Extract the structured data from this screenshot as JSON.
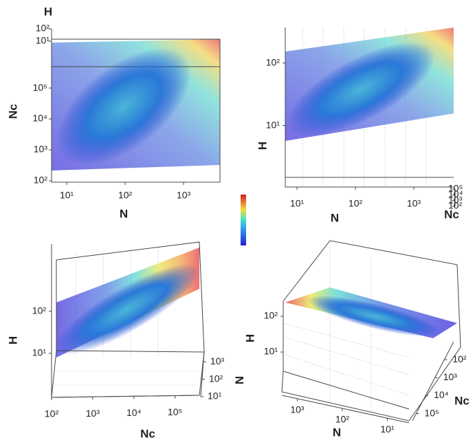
{
  "chart_data": [
    {
      "type": "scatter3d",
      "log": true,
      "axes": [
        {
          "title": "N",
          "lim": [
            5.5,
            4200
          ],
          "ticks": [
            {
              "value": 10,
              "label": "10¹"
            },
            {
              "value": 100,
              "label": "10²"
            },
            {
              "value": 1000,
              "label": "10³"
            }
          ]
        },
        {
          "title": "Nc",
          "lim": [
            100,
            3800000
          ],
          "ticks": [
            {
              "value": 100,
              "label": "10²"
            },
            {
              "value": 1000,
              "label": "10³"
            },
            {
              "value": 10000,
              "label": "10⁴"
            },
            {
              "value": 100000,
              "label": "10⁵"
            }
          ]
        },
        {
          "title": "H",
          "lim": [
            10,
            100
          ],
          "ticks": [
            {
              "value": 10,
              "label": "10¹"
            },
            {
              "value": 100,
              "label": "10²"
            }
          ]
        }
      ]
    },
    {
      "type": "scatter3d",
      "log": true,
      "axes": [
        {
          "title": "N",
          "lim": [
            6.3,
            4200
          ],
          "ticks": [
            {
              "value": 10,
              "label": "10¹"
            },
            {
              "value": 100,
              "label": "10²"
            },
            {
              "value": 1000,
              "label": "10³"
            }
          ]
        },
        {
          "title": "H",
          "lim": [
            1.6,
            370
          ],
          "ticks": [
            {
              "value": 10,
              "label": "10¹"
            },
            {
              "value": 100,
              "label": "10²"
            }
          ]
        },
        {
          "title": "Nc",
          "lim": [
            100,
            100000
          ],
          "ticks": [
            {
              "value": 100,
              "label": "10²"
            },
            {
              "value": 1000,
              "label": "10³"
            },
            {
              "value": 10000,
              "label": "10⁴"
            },
            {
              "value": 100000,
              "label": "10⁵"
            }
          ]
        }
      ]
    },
    {
      "type": "scatter3d",
      "log": true,
      "axes": [
        {
          "title": "Nc",
          "lim": [
            100,
            390000
          ],
          "ticks": [
            {
              "value": 100,
              "label": "10²"
            },
            {
              "value": 1000,
              "label": "10³"
            },
            {
              "value": 10000,
              "label": "10⁴"
            },
            {
              "value": 100000,
              "label": "10⁵"
            }
          ]
        },
        {
          "title": "H",
          "lim": [
            0.9,
            3900
          ],
          "ticks": [
            {
              "value": 10,
              "label": "10¹"
            },
            {
              "value": 100,
              "label": "10²"
            }
          ]
        },
        {
          "title": "N",
          "lim": [
            10,
            3600
          ],
          "ticks": [
            {
              "value": 10,
              "label": "10¹"
            },
            {
              "value": 100,
              "label": "10²"
            },
            {
              "value": 1000,
              "label": "10³"
            }
          ]
        }
      ]
    },
    {
      "type": "scatter3d",
      "log": true,
      "axes": [
        {
          "title": "N",
          "lim": [
            2200,
            3.3
          ],
          "ticks": [
            {
              "value": 1000,
              "label": "10³"
            },
            {
              "value": 100,
              "label": "10²"
            },
            {
              "value": 10,
              "label": "10¹"
            }
          ]
        },
        {
          "title": "H",
          "lim": [
            2.9,
            265
          ],
          "ticks": [
            {
              "value": 10,
              "label": "10¹"
            },
            {
              "value": 100,
              "label": "10²"
            }
          ]
        },
        {
          "title": "Nc",
          "lim": [
            250000,
            10
          ],
          "ticks": [
            {
              "value": 100,
              "label": "10²"
            },
            {
              "value": 1000,
              "label": "10³"
            },
            {
              "value": 10000,
              "label": "10⁴"
            },
            {
              "value": 100000,
              "label": "10⁵"
            }
          ]
        }
      ]
    }
  ]
}
